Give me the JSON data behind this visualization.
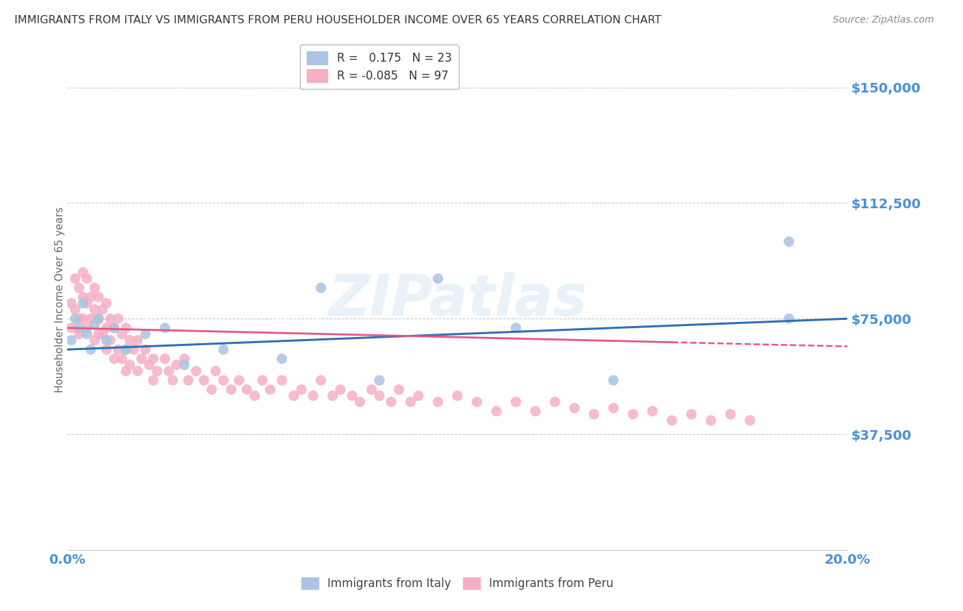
{
  "title": "IMMIGRANTS FROM ITALY VS IMMIGRANTS FROM PERU HOUSEHOLDER INCOME OVER 65 YEARS CORRELATION CHART",
  "source": "Source: ZipAtlas.com",
  "ylabel": "Householder Income Over 65 years",
  "x_min": 0.0,
  "x_max": 0.2,
  "y_min": 0,
  "y_max": 162500,
  "y_ticks": [
    0,
    37500,
    75000,
    112500,
    150000
  ],
  "y_tick_labels": [
    "",
    "$37,500",
    "$75,000",
    "$112,500",
    "$150,000"
  ],
  "italy_color": "#aac4e2",
  "peru_color": "#f5afc4",
  "italy_line_color": "#2e6fb5",
  "peru_line_color": "#e8547a",
  "italy_R": 0.175,
  "italy_N": 23,
  "peru_R": -0.085,
  "peru_N": 97,
  "italy_scatter_x": [
    0.001,
    0.002,
    0.003,
    0.004,
    0.005,
    0.006,
    0.007,
    0.008,
    0.01,
    0.012,
    0.015,
    0.02,
    0.025,
    0.03,
    0.04,
    0.055,
    0.065,
    0.08,
    0.095,
    0.115,
    0.14,
    0.185,
    0.185
  ],
  "italy_scatter_y": [
    68000,
    75000,
    72000,
    80000,
    70000,
    65000,
    73000,
    75000,
    68000,
    72000,
    65000,
    70000,
    72000,
    60000,
    65000,
    62000,
    85000,
    55000,
    88000,
    72000,
    55000,
    75000,
    100000
  ],
  "peru_scatter_x": [
    0.001,
    0.001,
    0.002,
    0.002,
    0.003,
    0.003,
    0.003,
    0.004,
    0.004,
    0.004,
    0.005,
    0.005,
    0.005,
    0.006,
    0.006,
    0.007,
    0.007,
    0.007,
    0.008,
    0.008,
    0.008,
    0.009,
    0.009,
    0.01,
    0.01,
    0.01,
    0.011,
    0.011,
    0.012,
    0.012,
    0.013,
    0.013,
    0.014,
    0.014,
    0.015,
    0.015,
    0.015,
    0.016,
    0.016,
    0.017,
    0.018,
    0.018,
    0.019,
    0.02,
    0.021,
    0.022,
    0.022,
    0.023,
    0.025,
    0.026,
    0.027,
    0.028,
    0.03,
    0.031,
    0.033,
    0.035,
    0.037,
    0.038,
    0.04,
    0.042,
    0.044,
    0.046,
    0.048,
    0.05,
    0.052,
    0.055,
    0.058,
    0.06,
    0.063,
    0.065,
    0.068,
    0.07,
    0.073,
    0.075,
    0.078,
    0.08,
    0.083,
    0.085,
    0.088,
    0.09,
    0.095,
    0.1,
    0.105,
    0.11,
    0.115,
    0.12,
    0.125,
    0.13,
    0.135,
    0.14,
    0.145,
    0.15,
    0.155,
    0.16,
    0.165,
    0.17,
    0.175
  ],
  "peru_scatter_y": [
    80000,
    72000,
    88000,
    78000,
    85000,
    75000,
    70000,
    90000,
    82000,
    75000,
    88000,
    80000,
    72000,
    82000,
    75000,
    85000,
    78000,
    68000,
    82000,
    75000,
    70000,
    78000,
    70000,
    80000,
    72000,
    65000,
    75000,
    68000,
    72000,
    62000,
    75000,
    65000,
    70000,
    62000,
    72000,
    65000,
    58000,
    68000,
    60000,
    65000,
    68000,
    58000,
    62000,
    65000,
    60000,
    62000,
    55000,
    58000,
    62000,
    58000,
    55000,
    60000,
    62000,
    55000,
    58000,
    55000,
    52000,
    58000,
    55000,
    52000,
    55000,
    52000,
    50000,
    55000,
    52000,
    55000,
    50000,
    52000,
    50000,
    55000,
    50000,
    52000,
    50000,
    48000,
    52000,
    50000,
    48000,
    52000,
    48000,
    50000,
    48000,
    50000,
    48000,
    45000,
    48000,
    45000,
    48000,
    46000,
    44000,
    46000,
    44000,
    45000,
    42000,
    44000,
    42000,
    44000,
    42000
  ],
  "watermark": "ZIPatlas",
  "background_color": "#ffffff",
  "grid_color": "#c8c8c8",
  "tick_label_color": "#4a90d9",
  "title_color": "#333333",
  "legend_italy_label": "Immigrants from Italy",
  "legend_peru_label": "Immigrants from Peru"
}
